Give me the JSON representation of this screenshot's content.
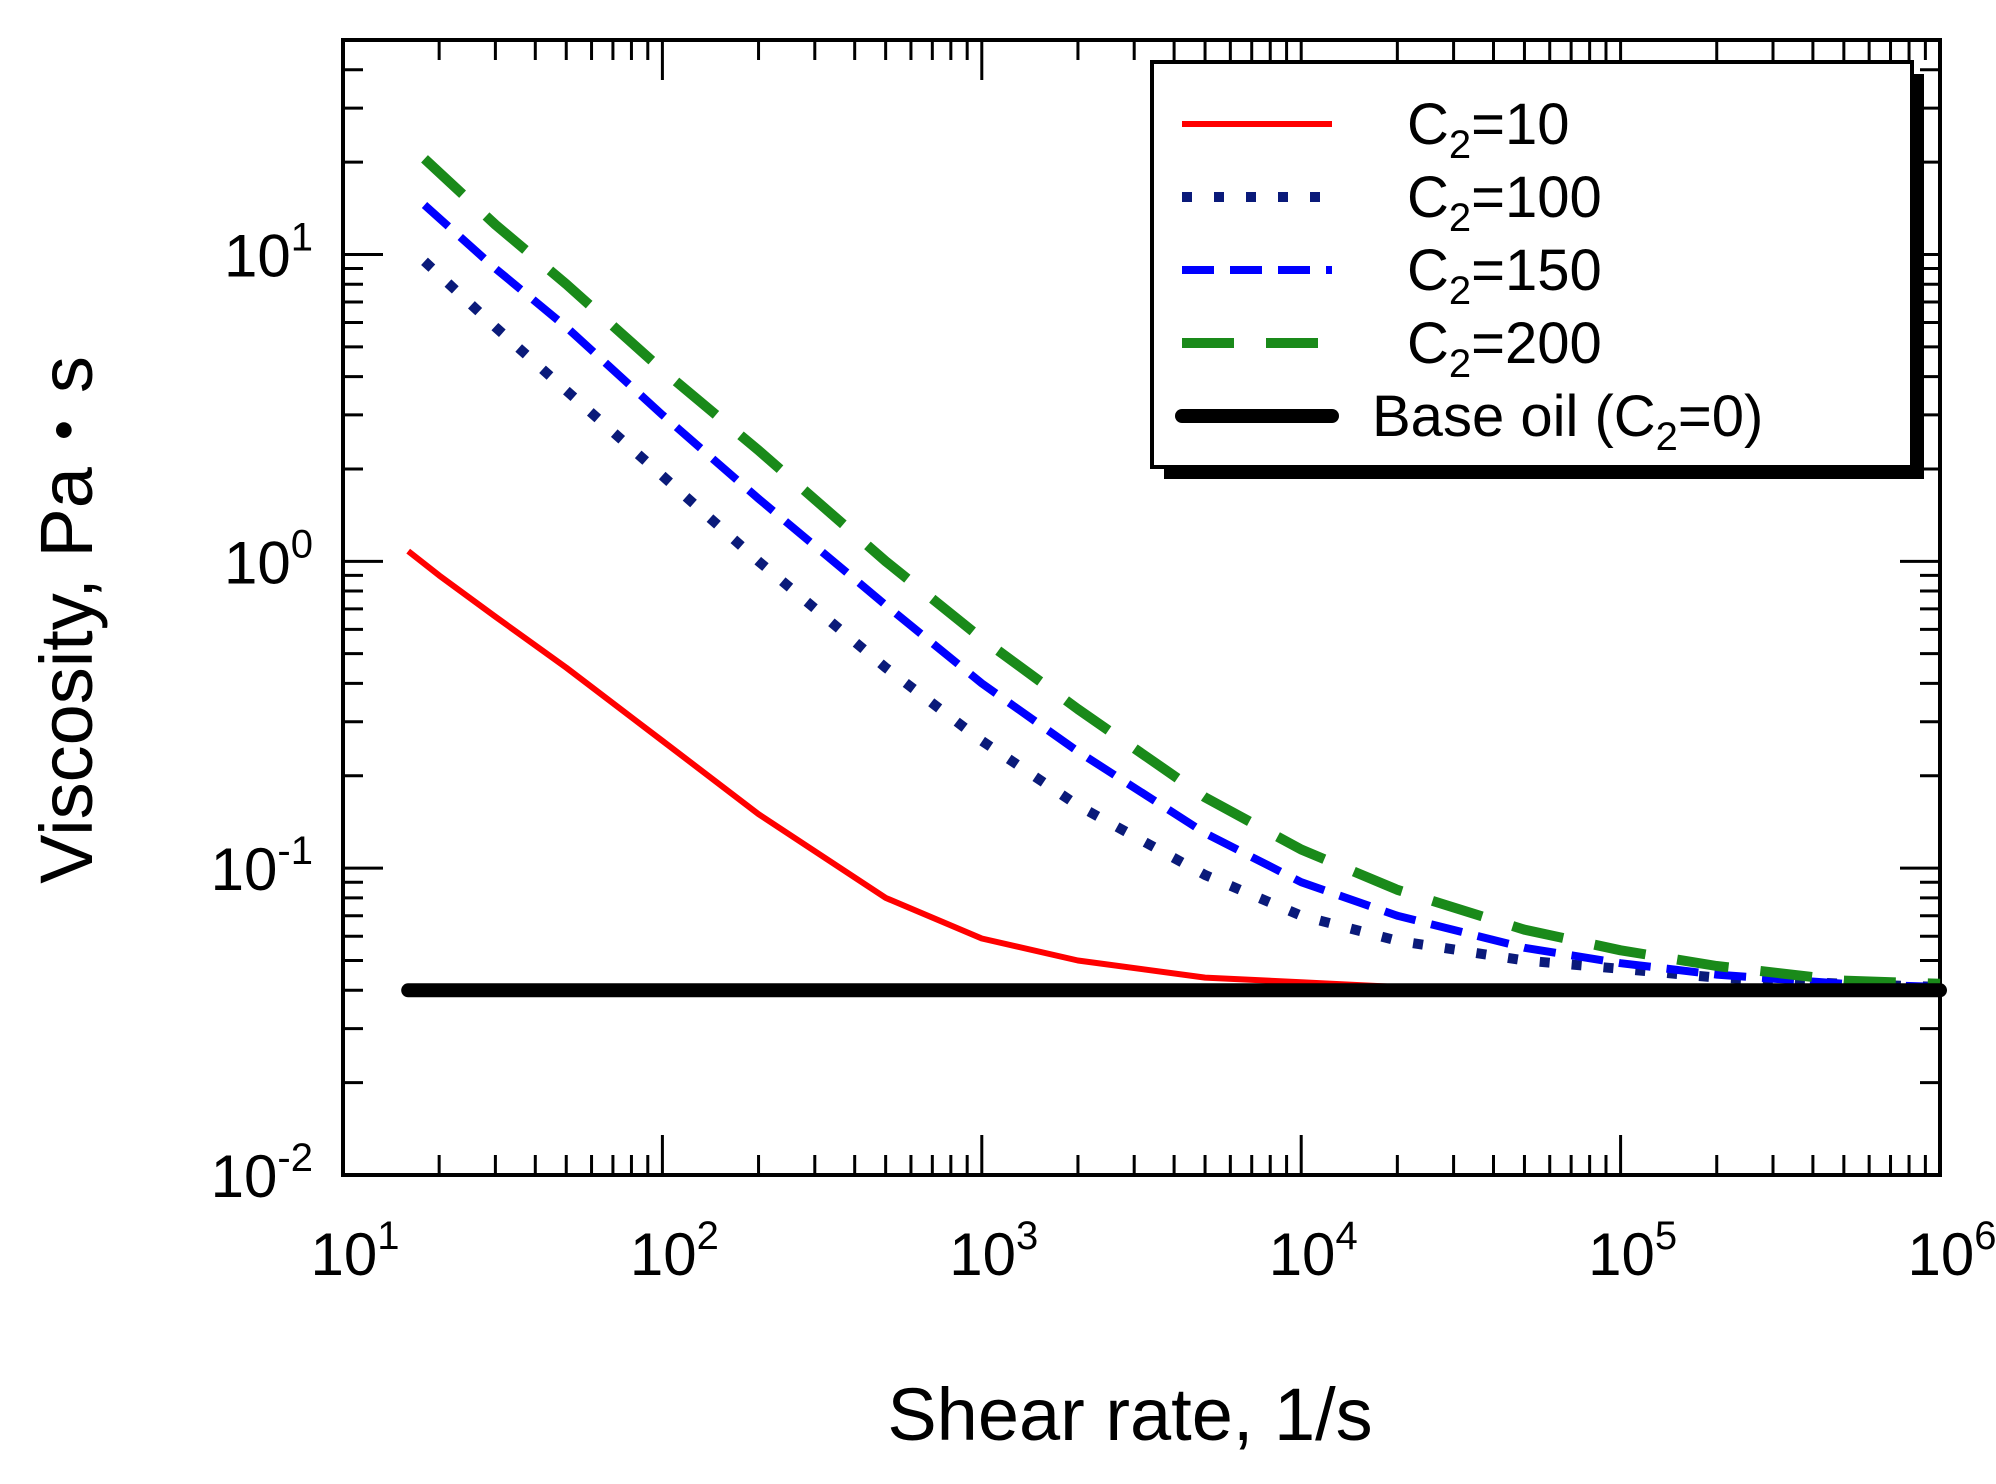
{
  "chart_data": {
    "type": "line",
    "title": "",
    "xlabel": "Shear rate, 1/s",
    "ylabel": "Viscosity, Pa・s",
    "x_scale": "log",
    "y_scale": "log",
    "xlim": [
      10,
      1000000
    ],
    "ylim": [
      0.01,
      50
    ],
    "x_ticks": [
      {
        "base": "10",
        "exp": "1",
        "value": 10
      },
      {
        "base": "10",
        "exp": "2",
        "value": 100
      },
      {
        "base": "10",
        "exp": "3",
        "value": 1000
      },
      {
        "base": "10",
        "exp": "4",
        "value": 10000
      },
      {
        "base": "10",
        "exp": "5",
        "value": 100000
      },
      {
        "base": "10",
        "exp": "6",
        "value": 1000000
      }
    ],
    "y_ticks": [
      {
        "base": "10",
        "exp": "-2",
        "value": 0.01
      },
      {
        "base": "10",
        "exp": "-1",
        "value": 0.1
      },
      {
        "base": "10",
        "exp": "0",
        "value": 1
      },
      {
        "base": "10",
        "exp": "1",
        "value": 10
      }
    ],
    "grid": false,
    "legend_position": "top-right",
    "series": [
      {
        "name": "C2=10",
        "label_main": "C",
        "label_sub": "2",
        "label_rest": "=10",
        "color": "#ff0000",
        "style": "solid",
        "x": [
          16,
          20,
          30,
          50,
          100,
          200,
          500,
          1000,
          2000,
          5000,
          10000,
          20000,
          50000,
          100000,
          1000000
        ],
        "y": [
          1.08,
          0.9,
          0.66,
          0.45,
          0.26,
          0.15,
          0.08,
          0.059,
          0.05,
          0.044,
          0.0425,
          0.041,
          0.0405,
          0.0402,
          0.04
        ]
      },
      {
        "name": "C2=100",
        "label_main": "C",
        "label_sub": "2",
        "label_rest": "=100",
        "color": "#0a1a7a",
        "style": "dotted",
        "x": [
          18,
          30,
          50,
          100,
          200,
          500,
          1000,
          2000,
          5000,
          10000,
          20000,
          50000,
          100000,
          200000,
          500000,
          1000000
        ],
        "y": [
          9.5,
          5.8,
          3.6,
          1.9,
          1.0,
          0.45,
          0.26,
          0.16,
          0.095,
          0.07,
          0.058,
          0.05,
          0.047,
          0.044,
          0.042,
          0.041
        ]
      },
      {
        "name": "C2=150",
        "label_main": "C",
        "label_sub": "2",
        "label_rest": "=150",
        "color": "#0000ff",
        "style": "dashed",
        "x": [
          18,
          30,
          50,
          100,
          200,
          500,
          1000,
          2000,
          5000,
          10000,
          20000,
          50000,
          100000,
          200000,
          500000,
          1000000
        ],
        "y": [
          14.5,
          9.0,
          5.8,
          3.0,
          1.6,
          0.72,
          0.4,
          0.24,
          0.13,
          0.09,
          0.07,
          0.055,
          0.049,
          0.045,
          0.042,
          0.041
        ]
      },
      {
        "name": "C2=200",
        "label_main": "C",
        "label_sub": "2",
        "label_rest": "=200",
        "color": "#1a8a1a",
        "style": "longdash",
        "x": [
          18,
          30,
          50,
          100,
          200,
          500,
          1000,
          2000,
          5000,
          10000,
          20000,
          50000,
          100000,
          200000,
          500000,
          1000000
        ],
        "y": [
          20.5,
          12.5,
          8.0,
          4.2,
          2.3,
          1.0,
          0.56,
          0.33,
          0.17,
          0.115,
          0.085,
          0.063,
          0.054,
          0.048,
          0.043,
          0.042
        ]
      },
      {
        "name": "Base oil (C2=0)",
        "label_main": "Base oil  (C",
        "label_sub": "2",
        "label_rest": "=0)",
        "color": "#000000",
        "style": "thick",
        "x": [
          16,
          1000000
        ],
        "y": [
          0.04,
          0.04
        ]
      }
    ]
  }
}
